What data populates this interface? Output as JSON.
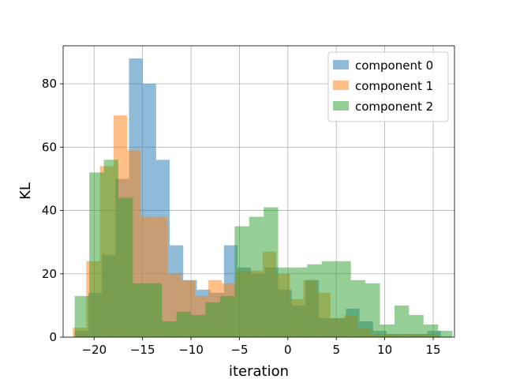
{
  "chart_data": {
    "type": "bar",
    "title": "",
    "xlabel": "iteration",
    "ylabel": "KL",
    "xlim": [
      -23.2,
      17.2
    ],
    "ylim": [
      0,
      92
    ],
    "xticks": [
      -20,
      -15,
      -10,
      -5,
      0,
      5,
      10,
      15
    ],
    "xtick_labels": [
      "−20",
      "−15",
      "−10",
      "−5",
      "0",
      "5",
      "10",
      "15"
    ],
    "yticks": [
      0,
      20,
      40,
      60,
      80
    ],
    "ytick_labels": [
      "0",
      "20",
      "40",
      "60",
      "80"
    ],
    "grid": true,
    "legend_position": "top-right",
    "series": [
      {
        "name": "component 0",
        "color": "#1f77b4",
        "alpha": 0.5,
        "bins": [
          [
            -22.0,
            -20.6,
            2
          ],
          [
            -20.6,
            -19.2,
            14
          ],
          [
            -19.2,
            -17.8,
            26
          ],
          [
            -17.8,
            -16.4,
            50
          ],
          [
            -16.4,
            -15.0,
            88
          ],
          [
            -15.0,
            -13.6,
            80
          ],
          [
            -13.6,
            -12.2,
            56
          ],
          [
            -12.2,
            -10.8,
            29
          ],
          [
            -10.8,
            -9.4,
            18
          ],
          [
            -9.4,
            -8.0,
            15
          ],
          [
            -8.0,
            -6.6,
            14
          ],
          [
            -6.6,
            -5.2,
            29
          ],
          [
            -5.2,
            -3.8,
            22
          ],
          [
            -3.8,
            -2.4,
            20
          ],
          [
            -2.4,
            -1.0,
            22
          ],
          [
            -1.0,
            0.4,
            15
          ],
          [
            0.4,
            1.8,
            10
          ],
          [
            1.8,
            3.2,
            18
          ],
          [
            3.2,
            4.6,
            6
          ],
          [
            4.6,
            6.0,
            6
          ],
          [
            6.0,
            7.4,
            9
          ],
          [
            7.4,
            8.8,
            5
          ],
          [
            8.8,
            10.2,
            2
          ],
          [
            10.2,
            11.6,
            1
          ],
          [
            11.6,
            13.0,
            1
          ],
          [
            13.0,
            14.4,
            1
          ],
          [
            14.4,
            15.8,
            2
          ]
        ]
      },
      {
        "name": "component 1",
        "color": "#ff7f0e",
        "alpha": 0.5,
        "bins": [
          [
            -22.2,
            -20.8,
            3
          ],
          [
            -20.8,
            -19.4,
            24
          ],
          [
            -19.4,
            -18.0,
            54
          ],
          [
            -18.0,
            -16.6,
            70
          ],
          [
            -16.6,
            -15.2,
            59
          ],
          [
            -15.2,
            -13.8,
            38
          ],
          [
            -13.8,
            -12.4,
            38
          ],
          [
            -12.4,
            -11.0,
            20
          ],
          [
            -11.0,
            -9.6,
            18
          ],
          [
            -9.6,
            -8.2,
            13
          ],
          [
            -8.2,
            -6.8,
            18
          ],
          [
            -6.8,
            -5.4,
            17
          ],
          [
            -5.4,
            -4.0,
            21
          ],
          [
            -4.0,
            -2.6,
            21
          ],
          [
            -2.6,
            -1.2,
            27
          ],
          [
            -1.2,
            0.2,
            20
          ],
          [
            0.2,
            1.6,
            12
          ],
          [
            1.6,
            3.0,
            18
          ],
          [
            3.0,
            4.4,
            14
          ],
          [
            4.4,
            5.8,
            6
          ],
          [
            5.8,
            7.2,
            7
          ],
          [
            7.2,
            8.6,
            3
          ],
          [
            8.6,
            10.0,
            1
          ],
          [
            10.0,
            11.4,
            1
          ],
          [
            11.4,
            12.8,
            1
          ],
          [
            12.8,
            14.2,
            1
          ],
          [
            14.2,
            15.6,
            1
          ]
        ]
      },
      {
        "name": "component 2",
        "color": "#2ca02c",
        "alpha": 0.5,
        "bins": [
          [
            -22.0,
            -20.5,
            13
          ],
          [
            -20.5,
            -19.0,
            52
          ],
          [
            -19.0,
            -17.5,
            56
          ],
          [
            -17.5,
            -16.0,
            44
          ],
          [
            -16.0,
            -14.5,
            17
          ],
          [
            -14.5,
            -13.0,
            17
          ],
          [
            -13.0,
            -11.5,
            5
          ],
          [
            -11.5,
            -10.0,
            8
          ],
          [
            -10.0,
            -8.5,
            7
          ],
          [
            -8.5,
            -7.0,
            11
          ],
          [
            -7.0,
            -5.5,
            13
          ],
          [
            -5.5,
            -4.0,
            35
          ],
          [
            -4.0,
            -2.5,
            38
          ],
          [
            -2.5,
            -1.0,
            41
          ],
          [
            -1.0,
            0.5,
            22
          ],
          [
            0.5,
            2.0,
            22
          ],
          [
            2.0,
            3.5,
            23
          ],
          [
            3.5,
            5.0,
            24
          ],
          [
            5.0,
            6.5,
            24
          ],
          [
            6.5,
            8.0,
            18
          ],
          [
            8.0,
            9.5,
            17
          ],
          [
            9.5,
            11.0,
            4
          ],
          [
            11.0,
            12.5,
            10
          ],
          [
            12.5,
            14.0,
            7
          ],
          [
            14.0,
            15.5,
            4
          ],
          [
            15.5,
            17.0,
            2
          ]
        ]
      }
    ]
  }
}
